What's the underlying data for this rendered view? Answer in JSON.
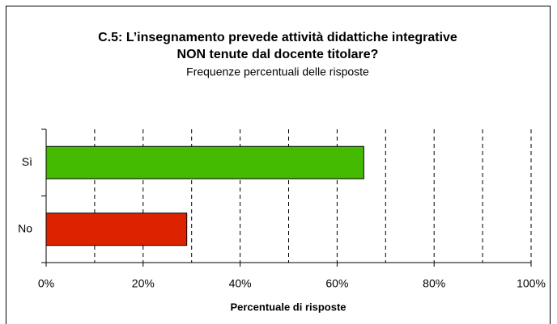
{
  "chart_data": {
    "type": "hbar",
    "title": [
      "C.5: L’insegnamento prevede attività didattiche integrative",
      "NON tenute dal docente titolare?"
    ],
    "subtitle": "Frequenze percentuali delle risposte",
    "xlabel": "Percentuale di risposte",
    "categories": [
      "Sì",
      "No"
    ],
    "series": [
      {
        "values": [
          65.5,
          29
        ],
        "colors": [
          "#44bb00",
          "#dd2200"
        ]
      }
    ],
    "xlim": [
      0,
      100
    ],
    "xticks": [
      {
        "value": 0,
        "label": "0%"
      },
      {
        "value": 20,
        "label": "20%"
      },
      {
        "value": 40,
        "label": "40%"
      },
      {
        "value": 60,
        "label": "60%"
      },
      {
        "value": 80,
        "label": "80%"
      },
      {
        "value": 100,
        "label": "100%"
      }
    ],
    "minor_xticks": [
      10,
      30,
      50,
      70,
      90
    ],
    "grid": true
  }
}
